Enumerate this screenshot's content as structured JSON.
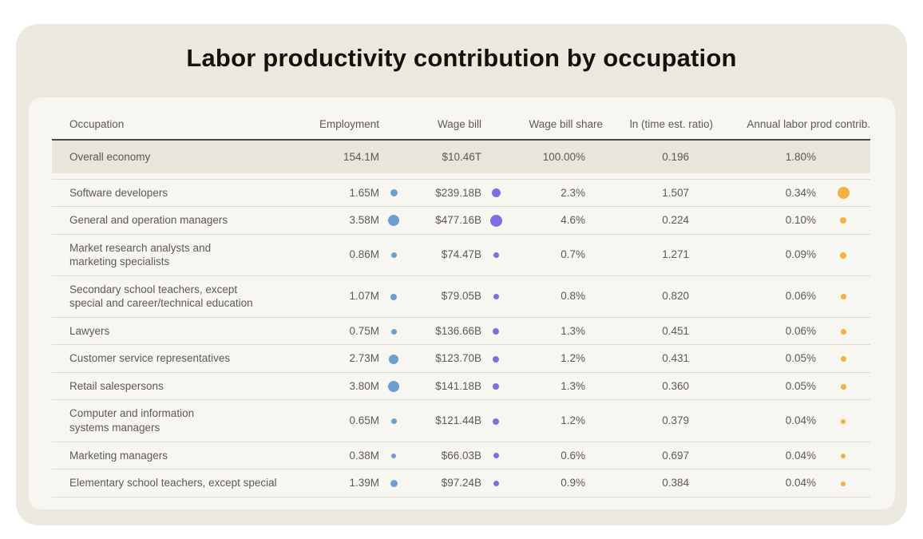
{
  "chart_data": {
    "type": "table",
    "title": "Labor productivity contribution by occupation",
    "columns": [
      "Occupation",
      "Employment",
      "Wage bill",
      "Wage bill share",
      "ln (time est. ratio)",
      "Annual labor prod contrib."
    ],
    "summary_row": {
      "occupation": "Overall economy",
      "employment": "154.1M",
      "wage_bill": "$10.46T",
      "wage_bill_share": "100.00%",
      "ln_ratio": "0.196",
      "annual_contrib": "1.80%"
    },
    "rows": [
      {
        "occupation": "Software developers",
        "employment": "1.65M",
        "employment_dot": 9,
        "wage_bill": "$239.18B",
        "wage_bill_dot": 11,
        "wage_bill_share": "2.3%",
        "ln_ratio": "1.507",
        "annual_contrib": "0.34%",
        "contrib_dot": 15
      },
      {
        "occupation": "General and operation managers",
        "employment": "3.58M",
        "employment_dot": 14,
        "wage_bill": "$477.16B",
        "wage_bill_dot": 15,
        "wage_bill_share": "4.6%",
        "ln_ratio": "0.224",
        "annual_contrib": "0.10%",
        "contrib_dot": 8
      },
      {
        "occupation": "Market research analysts and\nmarketing specialists",
        "employment": "0.86M",
        "employment_dot": 7,
        "wage_bill": "$74.47B",
        "wage_bill_dot": 7,
        "wage_bill_share": "0.7%",
        "ln_ratio": "1.271",
        "annual_contrib": "0.09%",
        "contrib_dot": 8
      },
      {
        "occupation": "Secondary school teachers, except\nspecial and career/technical education",
        "employment": "1.07M",
        "employment_dot": 8,
        "wage_bill": "$79.05B",
        "wage_bill_dot": 7,
        "wage_bill_share": "0.8%",
        "ln_ratio": "0.820",
        "annual_contrib": "0.06%",
        "contrib_dot": 7
      },
      {
        "occupation": "Lawyers",
        "employment": "0.75M",
        "employment_dot": 7,
        "wage_bill": "$136.66B",
        "wage_bill_dot": 8,
        "wage_bill_share": "1.3%",
        "ln_ratio": "0.451",
        "annual_contrib": "0.06%",
        "contrib_dot": 7
      },
      {
        "occupation": "Customer service representatives",
        "employment": "2.73M",
        "employment_dot": 12,
        "wage_bill": "$123.70B",
        "wage_bill_dot": 8,
        "wage_bill_share": "1.2%",
        "ln_ratio": "0.431",
        "annual_contrib": "0.05%",
        "contrib_dot": 7
      },
      {
        "occupation": "Retail salespersons",
        "employment": "3.80M",
        "employment_dot": 14,
        "wage_bill": "$141.18B",
        "wage_bill_dot": 8,
        "wage_bill_share": "1.3%",
        "ln_ratio": "0.360",
        "annual_contrib": "0.05%",
        "contrib_dot": 7
      },
      {
        "occupation": "Computer and information\nsystems managers",
        "employment": "0.65M",
        "employment_dot": 7,
        "wage_bill": "$121.44B",
        "wage_bill_dot": 8,
        "wage_bill_share": "1.2%",
        "ln_ratio": "0.379",
        "annual_contrib": "0.04%",
        "contrib_dot": 6
      },
      {
        "occupation": "Marketing managers",
        "employment": "0.38M",
        "employment_dot": 6,
        "wage_bill": "$66.03B",
        "wage_bill_dot": 7,
        "wage_bill_share": "0.6%",
        "ln_ratio": "0.697",
        "annual_contrib": "0.04%",
        "contrib_dot": 6
      },
      {
        "occupation": "Elementary school teachers, except special",
        "employment": "1.39M",
        "employment_dot": 9,
        "wage_bill": "$97.24B",
        "wage_bill_dot": 7,
        "wage_bill_share": "0.9%",
        "ln_ratio": "0.384",
        "annual_contrib": "0.04%",
        "contrib_dot": 6
      }
    ],
    "bubble_colors": {
      "employment_dot": "#6d9ed3",
      "wage_bill_dot": "#7d6ee4",
      "contrib_dot": "#f2b140"
    },
    "layout": {
      "legend": "off",
      "bubble_encoding": "bubble diameter scales with column value"
    }
  }
}
